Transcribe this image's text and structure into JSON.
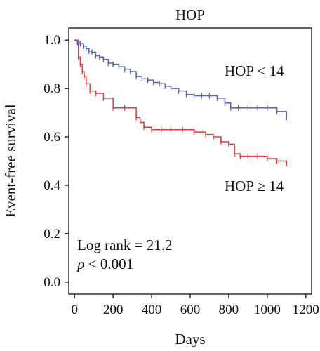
{
  "chart_data": {
    "type": "line",
    "title": "HOP",
    "xlabel": "Days",
    "ylabel": "Event-free survival",
    "xlim": [
      -30,
      1230
    ],
    "ylim": [
      -0.05,
      1.05
    ],
    "xticks": [
      0,
      200,
      400,
      600,
      800,
      1000,
      1200
    ],
    "yticks": [
      "0.0",
      "0.2",
      "0.4",
      "0.6",
      "0.8",
      "1.0"
    ],
    "grid": false,
    "legend": "none",
    "series": [
      {
        "name": "HOP < 14",
        "color": "#5a63b5",
        "x": [
          0,
          15,
          30,
          45,
          60,
          75,
          90,
          110,
          130,
          150,
          175,
          200,
          230,
          260,
          290,
          320,
          350,
          380,
          410,
          440,
          470,
          500,
          540,
          580,
          620,
          660,
          700,
          740,
          780,
          810,
          850,
          900,
          950,
          1000,
          1050,
          1100
        ],
        "y": [
          1.0,
          0.99,
          0.985,
          0.975,
          0.965,
          0.955,
          0.95,
          0.935,
          0.93,
          0.92,
          0.905,
          0.9,
          0.89,
          0.88,
          0.87,
          0.85,
          0.84,
          0.835,
          0.825,
          0.82,
          0.81,
          0.8,
          0.79,
          0.775,
          0.77,
          0.77,
          0.77,
          0.76,
          0.74,
          0.72,
          0.72,
          0.72,
          0.72,
          0.72,
          0.705,
          0.68
        ]
      },
      {
        "name": "HOP ≥ 14",
        "color": "#e13b3b",
        "x": [
          0,
          20,
          30,
          40,
          50,
          60,
          80,
          110,
          150,
          200,
          260,
          320,
          340,
          360,
          400,
          450,
          500,
          560,
          620,
          680,
          720,
          760,
          800,
          830,
          860,
          900,
          950,
          1000,
          1050,
          1100
        ],
        "y": [
          1.0,
          0.93,
          0.9,
          0.87,
          0.85,
          0.82,
          0.79,
          0.78,
          0.76,
          0.72,
          0.72,
          0.68,
          0.66,
          0.64,
          0.63,
          0.63,
          0.63,
          0.63,
          0.62,
          0.61,
          0.6,
          0.58,
          0.57,
          0.53,
          0.52,
          0.52,
          0.52,
          0.51,
          0.5,
          0.49
        ]
      }
    ],
    "annotations": {
      "label_high": "HOP < 14",
      "label_low": "HOP ≥ 14",
      "log_rank": "Log rank = 21.2",
      "p_italic": "p",
      "p_rest": " < 0.001"
    }
  }
}
